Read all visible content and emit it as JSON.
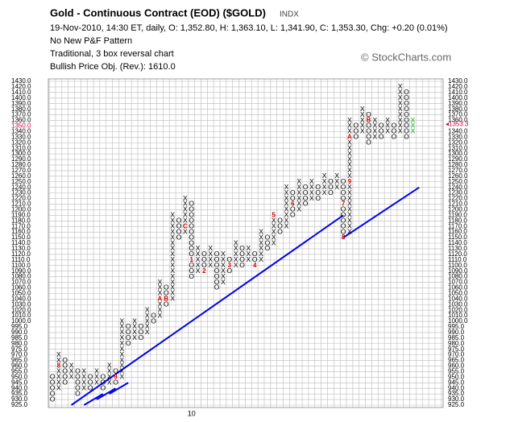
{
  "chart_data": {
    "type": "pnf",
    "title": "Gold - Continuous Contract (EOD) ($GOLD)",
    "exchange": "INDX",
    "subtitle": "19-Nov-2010, 14:30 ET, daily, O: 1,352.80, H: 1,363.10, L: 1,341.90, C: 1,353.30, Chg: +0.20 (0.01%)",
    "pattern": "No New P&F Pattern",
    "method": "Traditional, 3 box reversal chart",
    "objective": "Bullish Price Obj. (Rev.): 1610.0",
    "credit": "© StockCharts.com",
    "ylim": [
      925,
      1430
    ],
    "yticks": [
      {
        "value": 925,
        "label": "925.0"
      },
      {
        "value": 930,
        "label": "930.0"
      },
      {
        "value": 935,
        "label": "935.0"
      },
      {
        "value": 940,
        "label": "940.0"
      },
      {
        "value": 945,
        "label": "945.0"
      },
      {
        "value": 950,
        "label": "950.0"
      },
      {
        "value": 955,
        "label": "955.0"
      },
      {
        "value": 960,
        "label": "960.0"
      },
      {
        "value": 965,
        "label": "965.0"
      },
      {
        "value": 970,
        "label": "970.0"
      },
      {
        "value": 975,
        "label": "975.0"
      },
      {
        "value": 980,
        "label": "980.0"
      },
      {
        "value": 985,
        "label": "985.0"
      },
      {
        "value": 990,
        "label": "990.0"
      },
      {
        "value": 995,
        "label": "995.0"
      },
      {
        "value": 1000,
        "label": "1000.0"
      },
      {
        "value": 1010,
        "label": "1010.0"
      },
      {
        "value": 1020,
        "label": "1020.0"
      },
      {
        "value": 1030,
        "label": "1030.0"
      },
      {
        "value": 1040,
        "label": "1040.0"
      },
      {
        "value": 1050,
        "label": "1050.0"
      },
      {
        "value": 1060,
        "label": "1060.0"
      },
      {
        "value": 1070,
        "label": "1070.0"
      },
      {
        "value": 1080,
        "label": "1080.0"
      },
      {
        "value": 1090,
        "label": "1090.0"
      },
      {
        "value": 1100,
        "label": "1100.0"
      },
      {
        "value": 1110,
        "label": "1110.0"
      },
      {
        "value": 1120,
        "label": "1120.0"
      },
      {
        "value": 1130,
        "label": "1130.0"
      },
      {
        "value": 1140,
        "label": "1140.0"
      },
      {
        "value": 1150,
        "label": "1150.0"
      },
      {
        "value": 1160,
        "label": "1160.0"
      },
      {
        "value": 1170,
        "label": "1170.0"
      },
      {
        "value": 1180,
        "label": "1180.0"
      },
      {
        "value": 1190,
        "label": "1190.0"
      },
      {
        "value": 1200,
        "label": "1200.0"
      },
      {
        "value": 1210,
        "label": "1210.0"
      },
      {
        "value": 1220,
        "label": "1220.0"
      },
      {
        "value": 1230,
        "label": "1230.0"
      },
      {
        "value": 1240,
        "label": "1240.0"
      },
      {
        "value": 1250,
        "label": "1250.0"
      },
      {
        "value": 1260,
        "label": "1260.0"
      },
      {
        "value": 1270,
        "label": "1270.0"
      },
      {
        "value": 1280,
        "label": "1280.0"
      },
      {
        "value": 1290,
        "label": "1290.0"
      },
      {
        "value": 1300,
        "label": "1300.0"
      },
      {
        "value": 1310,
        "label": "1310.0"
      },
      {
        "value": 1320,
        "label": "1320.0"
      },
      {
        "value": 1330,
        "label": "1330.0"
      },
      {
        "value": 1340,
        "label": "1340.0"
      },
      {
        "value": 1350,
        "label": "1350.0"
      },
      {
        "value": 1360,
        "label": "1360.0"
      },
      {
        "value": 1370,
        "label": "1370.0"
      },
      {
        "value": 1380,
        "label": "1380.0"
      },
      {
        "value": 1390,
        "label": "1390.0"
      },
      {
        "value": 1400,
        "label": "1400.0"
      },
      {
        "value": 1410,
        "label": "1410.0"
      },
      {
        "value": 1420,
        "label": "1420.0"
      },
      {
        "value": 1430,
        "label": "1430.0"
      }
    ],
    "last_price": {
      "value": 1353.3,
      "label": "◂1353.3"
    },
    "colors": {
      "box": "#000000",
      "marker": "#cc0000",
      "last": "#cc0044",
      "trend": "#0000ee"
    },
    "columns": [
      {
        "type": "O",
        "low": 930,
        "high": 950
      },
      {
        "type": "X",
        "low": 940,
        "high": 970,
        "marks": [
          {
            "value": 960,
            "label": "8"
          }
        ]
      },
      {
        "type": "O",
        "low": 945,
        "high": 965
      },
      {
        "type": "X",
        "low": 950,
        "high": 960
      },
      {
        "type": "O",
        "low": 935,
        "high": 955
      },
      {
        "type": "X",
        "low": 940,
        "high": 955
      },
      {
        "type": "O",
        "low": 940,
        "high": 950
      },
      {
        "type": "X",
        "low": 945,
        "high": 955
      },
      {
        "type": "O",
        "low": 940,
        "high": 950
      },
      {
        "type": "X",
        "low": 945,
        "high": 960
      },
      {
        "type": "O",
        "low": 945,
        "high": 955,
        "marks": [
          {
            "value": 950,
            "label": "9"
          }
        ]
      },
      {
        "type": "X",
        "low": 950,
        "high": 1000
      },
      {
        "type": "O",
        "low": 980,
        "high": 995
      },
      {
        "type": "X",
        "low": 985,
        "high": 1000
      },
      {
        "type": "O",
        "low": 985,
        "high": 995
      },
      {
        "type": "X",
        "low": 990,
        "high": 1020
      },
      {
        "type": "O",
        "low": 1000,
        "high": 1010
      },
      {
        "type": "X",
        "low": 1010,
        "high": 1070,
        "marks": [
          {
            "value": 1040,
            "label": "A"
          }
        ]
      },
      {
        "type": "O",
        "low": 1030,
        "high": 1060,
        "marks": [
          {
            "value": 1040,
            "label": "B"
          }
        ]
      },
      {
        "type": "X",
        "low": 1040,
        "high": 1190
      },
      {
        "type": "O",
        "low": 1150,
        "high": 1180
      },
      {
        "type": "X",
        "low": 1160,
        "high": 1220,
        "marks": [
          {
            "value": 1170,
            "label": "C"
          }
        ]
      },
      {
        "type": "O",
        "low": 1080,
        "high": 1210,
        "marks": [
          {
            "value": 1110,
            "label": "1"
          }
        ]
      },
      {
        "type": "X",
        "low": 1090,
        "high": 1130
      },
      {
        "type": "O",
        "low": 1090,
        "high": 1120,
        "marks": [
          {
            "value": 1090,
            "label": "2"
          }
        ]
      },
      {
        "type": "X",
        "low": 1100,
        "high": 1130
      },
      {
        "type": "O",
        "low": 1060,
        "high": 1120
      },
      {
        "type": "X",
        "low": 1070,
        "high": 1120
      },
      {
        "type": "O",
        "low": 1090,
        "high": 1110,
        "marks": [
          {
            "value": 1100,
            "label": "3"
          }
        ]
      },
      {
        "type": "X",
        "low": 1100,
        "high": 1140
      },
      {
        "type": "O",
        "low": 1100,
        "high": 1130
      },
      {
        "type": "X",
        "low": 1110,
        "high": 1130
      },
      {
        "type": "O",
        "low": 1100,
        "high": 1120,
        "marks": [
          {
            "value": 1100,
            "label": "4"
          }
        ]
      },
      {
        "type": "X",
        "low": 1110,
        "high": 1160
      },
      {
        "type": "O",
        "low": 1130,
        "high": 1150
      },
      {
        "type": "X",
        "low": 1140,
        "high": 1190,
        "marks": [
          {
            "value": 1190,
            "label": "5"
          }
        ]
      },
      {
        "type": "O",
        "low": 1160,
        "high": 1180
      },
      {
        "type": "X",
        "low": 1170,
        "high": 1240
      },
      {
        "type": "O",
        "low": 1190,
        "high": 1230,
        "marks": [
          {
            "value": 1210,
            "label": "6"
          }
        ]
      },
      {
        "type": "X",
        "low": 1200,
        "high": 1250
      },
      {
        "type": "O",
        "low": 1210,
        "high": 1240
      },
      {
        "type": "X",
        "low": 1220,
        "high": 1250
      },
      {
        "type": "O",
        "low": 1220,
        "high": 1240
      },
      {
        "type": "X",
        "low": 1230,
        "high": 1260
      },
      {
        "type": "O",
        "low": 1230,
        "high": 1250
      },
      {
        "type": "X",
        "low": 1240,
        "high": 1260
      },
      {
        "type": "O",
        "low": 1150,
        "high": 1250,
        "marks": [
          {
            "value": 1210,
            "label": "7"
          },
          {
            "value": 1150,
            "label": "8"
          }
        ]
      },
      {
        "type": "X",
        "low": 1160,
        "high": 1360,
        "marks": [
          {
            "value": 1250,
            "label": "9"
          },
          {
            "value": 1330,
            "label": "A"
          }
        ]
      },
      {
        "type": "O",
        "low": 1330,
        "high": 1350
      },
      {
        "type": "X",
        "low": 1340,
        "high": 1380
      },
      {
        "type": "O",
        "low": 1320,
        "high": 1370,
        "marks": [
          {
            "value": 1360,
            "label": "B"
          }
        ]
      },
      {
        "type": "X",
        "low": 1330,
        "high": 1360
      },
      {
        "type": "O",
        "low": 1330,
        "high": 1350
      },
      {
        "type": "X",
        "low": 1340,
        "high": 1360
      },
      {
        "type": "O",
        "low": 1330,
        "high": 1350
      },
      {
        "type": "X",
        "low": 1340,
        "high": 1420
      },
      {
        "type": "O",
        "low": 1330,
        "high": 1410
      },
      {
        "type": "X",
        "low": 1340,
        "high": 1360,
        "color": "#00b000"
      }
    ],
    "trendlines": [
      {
        "x": [
          3,
          46
        ],
        "y": [
          925,
          1190
        ]
      },
      {
        "x": [
          5,
          8
        ],
        "y": [
          925,
          935
        ]
      },
      {
        "x": [
          7,
          10
        ],
        "y": [
          930,
          940
        ]
      },
      {
        "x": [
          9,
          12
        ],
        "y": [
          935,
          945
        ]
      },
      {
        "x": [
          46,
          58
        ],
        "y": [
          1150,
          1240
        ]
      }
    ],
    "x_labels": [
      {
        "x": 22,
        "label": "10"
      }
    ]
  }
}
